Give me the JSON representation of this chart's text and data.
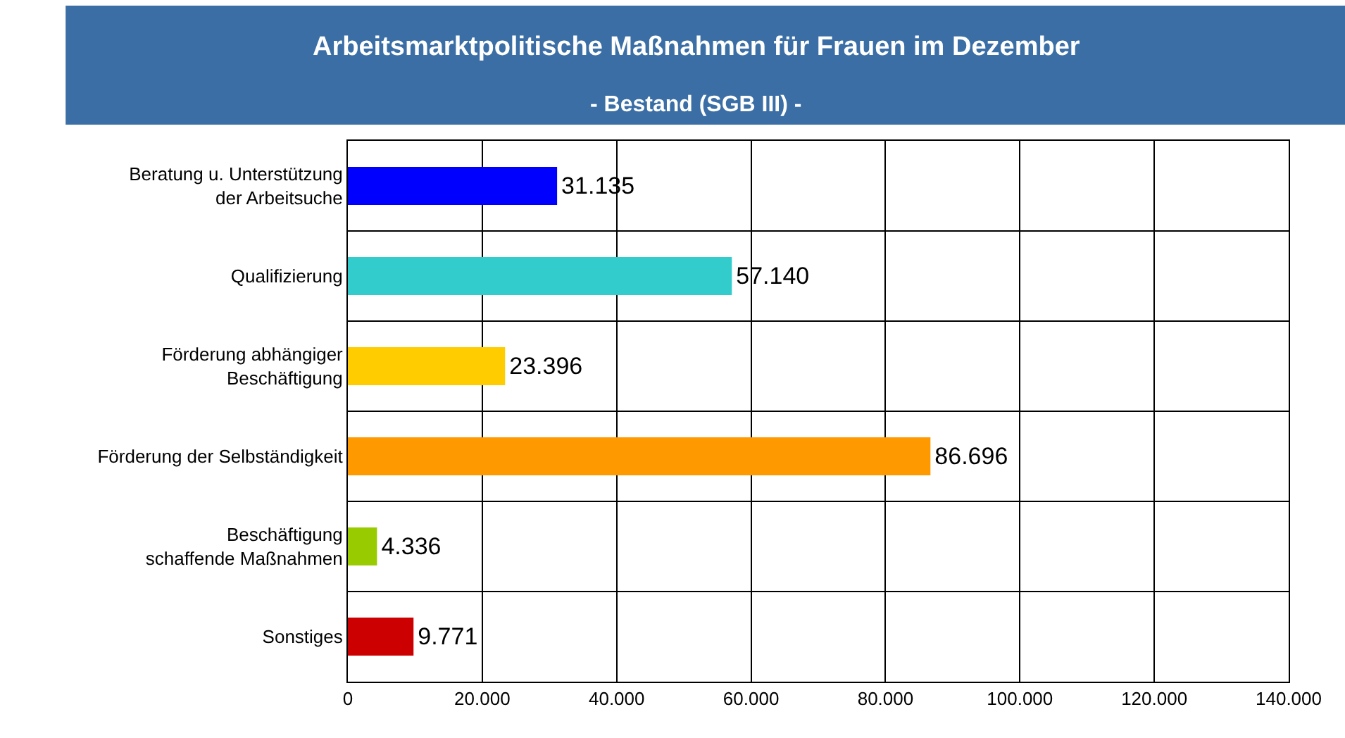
{
  "chart_data": {
    "type": "bar",
    "orientation": "horizontal",
    "title": "Arbeitsmarktpolitische Maßnahmen für Frauen im Dezember",
    "subtitle": "- Bestand (SGB III) -",
    "categories": [
      "Beratung u. Unterstützung\nder Arbeitsuche",
      "Qualifizierung",
      "Förderung abhängiger\nBeschäftigung",
      "Förderung der Selbständigkeit",
      "Beschäftigung\nschaffende Maßnahmen",
      "Sonstiges"
    ],
    "values": [
      31135,
      57140,
      23396,
      86696,
      4336,
      9771
    ],
    "colors": [
      "#0000ff",
      "#33cccc",
      "#ffcc00",
      "#ff9900",
      "#99cc00",
      "#cc0000"
    ],
    "value_labels": [
      "31.135",
      "57.140",
      "23.396",
      "86.696",
      "4.336",
      "9.771"
    ],
    "xlim": [
      0,
      140000
    ],
    "xticks": [
      {
        "value": 0,
        "label": "0"
      },
      {
        "value": 20000,
        "label": "20.000"
      },
      {
        "value": 40000,
        "label": "40.000"
      },
      {
        "value": 60000,
        "label": "60.000"
      },
      {
        "value": 80000,
        "label": "80.000"
      },
      {
        "value": 100000,
        "label": "100.000"
      },
      {
        "value": 120000,
        "label": "120.000"
      },
      {
        "value": 140000,
        "label": "140.000"
      }
    ],
    "grid": true,
    "legend": false
  }
}
